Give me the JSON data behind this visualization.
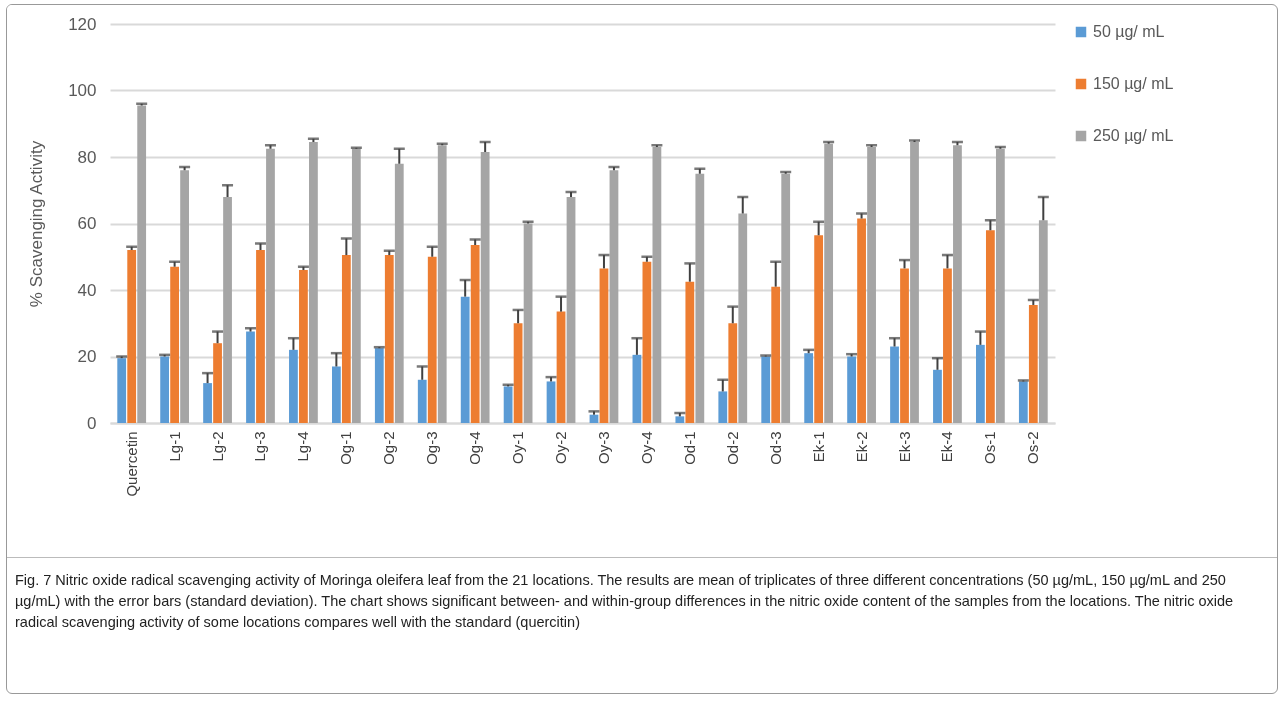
{
  "chart_data": {
    "type": "bar",
    "ylabel": "% Scavenging Activity",
    "categories": [
      "Quercetin",
      "Lg-1",
      "Lg-2",
      "Lg-3",
      "Lg-4",
      "Og-1",
      "Og-2",
      "Og-3",
      "Og-4",
      "Oy-1",
      "Oy-2",
      "Oy-3",
      "Oy-4",
      "Od-1",
      "Od-2",
      "Od-3",
      "Ek-1",
      "Ek-2",
      "Ek-3",
      "Ek-4",
      "Os-1",
      "Os-2"
    ],
    "series": [
      {
        "name": "50 µg/ mL",
        "color": "#5b9bd5",
        "values": [
          19.5,
          20,
          12,
          27.5,
          22,
          17,
          22.5,
          13,
          38,
          11,
          12.5,
          2.5,
          20.5,
          2,
          9.5,
          20,
          21,
          20,
          23,
          16,
          23.5,
          12.5
        ],
        "errors": [
          [
            19.5,
            20
          ],
          [
            20,
            20.5
          ],
          [
            12,
            15
          ],
          [
            27.5,
            28.5
          ],
          [
            22,
            25.5
          ],
          [
            17,
            21
          ],
          [
            22.5,
            22.8
          ],
          [
            13,
            17
          ],
          [
            38,
            43
          ],
          [
            11,
            11.5
          ],
          [
            12.5,
            13.8
          ],
          [
            2.5,
            3.5
          ],
          [
            20.5,
            25.5
          ],
          [
            2,
            3
          ],
          [
            9.5,
            13
          ],
          [
            20,
            20.3
          ],
          [
            21,
            22
          ],
          [
            20,
            20.7
          ],
          [
            23,
            25.5
          ],
          [
            16,
            19.5
          ],
          [
            23.5,
            27.5
          ],
          [
            12.5,
            12.8
          ]
        ]
      },
      {
        "name": "150 µg/ mL",
        "color": "#ed7d31",
        "values": [
          52,
          47,
          24,
          52,
          46,
          50.5,
          50.5,
          50,
          53.5,
          30,
          33.5,
          46.5,
          48.5,
          42.5,
          30,
          41,
          56.5,
          61.5,
          46.5,
          46.5,
          58,
          35.5
        ],
        "errors": [
          [
            52,
            53
          ],
          [
            47,
            48.5
          ],
          [
            24,
            27.5
          ],
          [
            52,
            54
          ],
          [
            46,
            47
          ],
          [
            50.5,
            55.5
          ],
          [
            50.5,
            51.8
          ],
          [
            50,
            53
          ],
          [
            53.5,
            55.2
          ],
          [
            30,
            34
          ],
          [
            33.5,
            38
          ],
          [
            46.5,
            50.5
          ],
          [
            48.5,
            50
          ],
          [
            42.5,
            48
          ],
          [
            30,
            35
          ],
          [
            41,
            48.5
          ],
          [
            56.5,
            60.5
          ],
          [
            61.5,
            63
          ],
          [
            46.5,
            49
          ],
          [
            46.5,
            50.5
          ],
          [
            58,
            61
          ],
          [
            35.5,
            37
          ]
        ]
      },
      {
        "name": "250 µg/ mL",
        "color": "#a5a5a5",
        "values": [
          95.5,
          76,
          68,
          82.5,
          84.5,
          82.5,
          78,
          83.5,
          81.5,
          60,
          68,
          76,
          83,
          75,
          63,
          75,
          84,
          83,
          84.5,
          83.5,
          82.5,
          61
        ],
        "errors": [
          [
            95.5,
            96
          ],
          [
            76,
            77
          ],
          [
            68,
            71.5
          ],
          [
            82.5,
            83.5
          ],
          [
            84.5,
            85.5
          ],
          [
            82.5,
            82.8
          ],
          [
            78,
            82.5
          ],
          [
            83.5,
            84
          ],
          [
            81.5,
            84.5
          ],
          [
            60,
            60.5
          ],
          [
            68,
            69.5
          ],
          [
            76,
            77
          ],
          [
            83,
            83.5
          ],
          [
            75,
            76.5
          ],
          [
            63,
            68
          ],
          [
            75,
            75.5
          ],
          [
            84,
            84.5
          ],
          [
            83,
            83.5
          ],
          [
            84.5,
            85
          ],
          [
            83.5,
            84.5
          ],
          [
            82.5,
            83
          ],
          [
            61,
            68
          ]
        ]
      }
    ],
    "ylim": [
      0,
      120
    ],
    "yticks": [
      0,
      20,
      40,
      60,
      80,
      100,
      120
    ],
    "grid": "y",
    "legend": "top right",
    "annotations": [
      "Fig. 7 Nitric oxide radical scavenging activity of Moringa oleifera leaf from the 21 locations. The results are mean of triplicates of three different concentrations (50 µg/mL, 150 µg/mL and 250 µg/mL) with the error bars (standard deviation). The chart shows significant between- and within-group differences in the nitric oxide content of the samples from the locations. The nitric oxide radical scavenging activity of some locations compares well with the standard (quercitin)"
    ]
  }
}
